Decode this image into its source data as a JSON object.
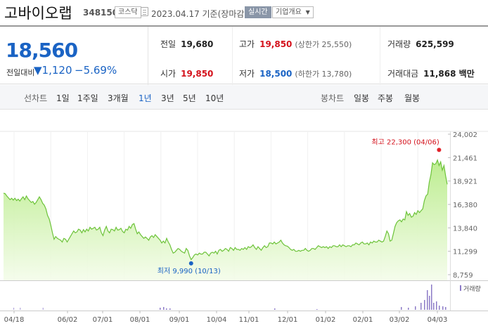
{
  "header": {
    "name": "고바이오랩",
    "code": "348150",
    "market": "코스닥",
    "date": "2023.04.17 기준(장마감)",
    "live_label": "실시간",
    "overview_label": "기업개요"
  },
  "quote": {
    "price": "18,560",
    "change_label": "전일대비",
    "change_arrow": "▼",
    "change_value": "1,120",
    "change_pct": "−5.69%",
    "prev_close_label": "전일",
    "prev_close": "19,680",
    "high_label": "고가",
    "high": "19,850",
    "upper_limit": "(상한가 25,550)",
    "volume_label": "거래량",
    "volume": "625,599",
    "open_label": "시가",
    "open": "19,850",
    "low_label": "저가",
    "low": "18,500",
    "lower_limit": "(하한가 13,780)",
    "trade_value_label": "거래대금",
    "trade_value": "11,868 백만"
  },
  "tabs": {
    "line_label": "선차트",
    "line": [
      "1일",
      "1주일",
      "3개월",
      "1년",
      "3년",
      "5년",
      "10년"
    ],
    "active": "1년",
    "candle_label": "봉차트",
    "candle": [
      "일봉",
      "주봉",
      "월봉"
    ]
  },
  "chart_data": {
    "type": "area",
    "period": "1년",
    "x_ticks": [
      "04/18",
      "06/02",
      "07/01",
      "08/01",
      "09/01",
      "10/04",
      "11/01",
      "12/01",
      "01/02",
      "02/01",
      "03/02",
      "04/03"
    ],
    "y_ticks": [
      "24,002",
      "21,461",
      "18,921",
      "16,380",
      "13,840",
      "11,299",
      "8,759"
    ],
    "ylim": [
      8759,
      24002
    ],
    "max_annotation": "최고 22,300 (04/06)",
    "min_annotation": "최저 9,990 (10/13)",
    "max_value": 22300,
    "min_value": 9990,
    "series": [
      {
        "values": [
          17600,
          17550,
          17300,
          17100,
          16900,
          17050,
          16850,
          17050,
          16800,
          16950,
          16750,
          17000,
          17200,
          16900,
          17300,
          17000,
          16800,
          16600,
          16700,
          16400,
          16600,
          16900,
          17200,
          16900,
          16500,
          16300,
          15900,
          15200,
          14800,
          14100,
          13300,
          12600,
          12900,
          12700,
          12600,
          12500,
          12300,
          12700,
          12600,
          12300,
          12600,
          12900,
          13200,
          13500,
          13300,
          13400,
          13700,
          13600,
          13300,
          13650,
          13400,
          13700,
          13500,
          13900,
          13700,
          13800,
          13900,
          13600,
          13700,
          13900,
          13300,
          13000,
          13600,
          14000,
          13500,
          13300,
          13700,
          13650,
          13500,
          13900,
          13600,
          13650,
          13800,
          13450,
          13300,
          13700,
          13600,
          14000,
          13800,
          14200,
          14300,
          13700,
          13200,
          13400,
          13100,
          12900,
          12700,
          12850,
          12700,
          12500,
          12850,
          13000,
          12800,
          13100,
          12900,
          12700,
          12500,
          12200,
          12400,
          12200,
          12700,
          12300,
          12000,
          11500,
          11100,
          11200,
          11400,
          11600,
          11500,
          11300,
          11200,
          11100,
          11600,
          11400,
          10800,
          10400,
          10600,
          10900,
          11000,
          10900,
          11100,
          11000,
          11000,
          11200,
          11200,
          11000,
          10800,
          11100,
          11200,
          11100,
          11300,
          11000,
          11400,
          11500,
          11300,
          11400,
          11600,
          11500,
          11300,
          11700,
          11600,
          11400,
          11700,
          11500,
          11500,
          11400,
          11600,
          11500,
          11700,
          11500,
          11800,
          11700,
          11800,
          12000,
          11700,
          11500,
          11800,
          11600,
          11400,
          11700,
          11900,
          11700,
          11800,
          12200,
          12200,
          12100,
          12300,
          12100,
          12200,
          12300,
          12500,
          12200,
          12000,
          11900,
          11850,
          11700,
          11500,
          11400,
          11500,
          11300,
          11300,
          11400,
          11300,
          11400,
          11400,
          11600,
          11400,
          11300,
          11400,
          11600,
          11600,
          11500,
          11700,
          11900,
          11800,
          11700,
          11800,
          11700,
          11800,
          11600,
          11800,
          11700,
          11900,
          11900,
          11800,
          11800,
          12000,
          11800,
          12000,
          11900,
          11800,
          11900,
          11900,
          11800,
          12000,
          12000,
          12200,
          12100,
          12000,
          12200,
          12300,
          12100,
          12100,
          12200,
          12000,
          12300,
          12200,
          12400,
          12300,
          12300,
          12500,
          12400,
          12300,
          12400,
          12900,
          13500,
          13200,
          12400,
          12500,
          13200,
          14000,
          14400,
          14600,
          14700,
          14500,
          14800,
          14700,
          15600,
          15200,
          15400,
          15000,
          15100,
          15500,
          15300,
          15700,
          15500,
          15700,
          15900,
          16800,
          17300,
          17500,
          18800,
          19600,
          20900,
          20700,
          20800,
          21200,
          20600,
          21000,
          20100,
          20600,
          19500,
          18560
        ]
      }
    ],
    "volume": [
      0,
      0,
      0,
      0,
      0,
      0,
      1,
      0,
      0,
      0,
      1,
      0,
      0,
      0,
      0,
      0,
      0,
      0,
      0,
      0,
      0,
      0,
      0,
      0,
      1,
      0,
      0,
      0,
      0,
      0,
      0,
      0,
      0,
      0,
      0,
      0,
      0,
      0,
      0,
      0,
      0,
      0,
      0,
      0,
      0,
      0,
      0,
      0,
      0,
      0,
      0,
      0,
      0,
      0,
      0,
      0,
      0,
      0,
      0,
      0,
      0,
      0,
      0,
      0,
      0,
      0,
      0,
      0,
      0,
      0,
      0,
      0,
      0,
      0,
      0,
      0,
      0,
      0,
      0,
      0,
      0,
      0,
      0,
      0,
      0,
      0,
      0,
      0,
      0,
      0,
      0,
      0,
      0,
      0,
      0,
      0,
      0,
      0,
      0,
      0,
      0,
      0,
      0,
      0,
      0,
      0,
      0,
      0,
      0,
      0,
      0,
      0,
      0,
      0,
      0,
      0,
      0,
      0,
      0,
      0,
      0,
      0,
      0,
      0,
      0,
      0,
      0,
      0,
      0,
      0,
      0,
      0,
      0,
      0,
      0,
      0,
      0,
      0,
      0,
      0,
      0,
      0,
      0,
      0,
      0,
      0,
      0,
      0,
      0,
      0,
      0,
      0,
      0,
      0,
      0,
      0,
      0,
      0,
      0,
      0,
      0,
      0,
      0,
      0,
      0,
      0,
      0,
      0,
      0,
      0,
      0,
      0,
      0,
      0,
      0,
      0,
      0,
      0,
      0,
      0,
      0,
      0,
      0,
      0,
      0,
      0,
      0,
      0,
      0,
      0,
      0,
      0,
      0,
      0,
      0,
      0,
      0,
      0,
      0,
      0,
      0,
      0,
      0,
      0,
      0,
      0,
      0,
      0,
      0,
      0,
      0,
      0,
      0,
      0,
      0,
      0,
      0,
      0,
      0,
      0,
      0,
      0,
      0,
      0,
      0,
      0,
      0,
      0,
      0,
      0,
      0,
      0,
      0,
      0,
      0,
      0,
      0,
      0,
      0,
      0,
      0,
      0,
      0,
      0,
      0,
      0,
      0,
      0,
      0,
      0,
      0,
      0,
      0,
      0,
      0,
      0,
      0,
      0,
      0,
      0,
      0,
      0,
      0,
      0,
      0,
      0,
      0,
      0,
      0,
      0,
      0,
      0,
      0,
      0,
      0
    ],
    "volume_label": "거래량"
  }
}
